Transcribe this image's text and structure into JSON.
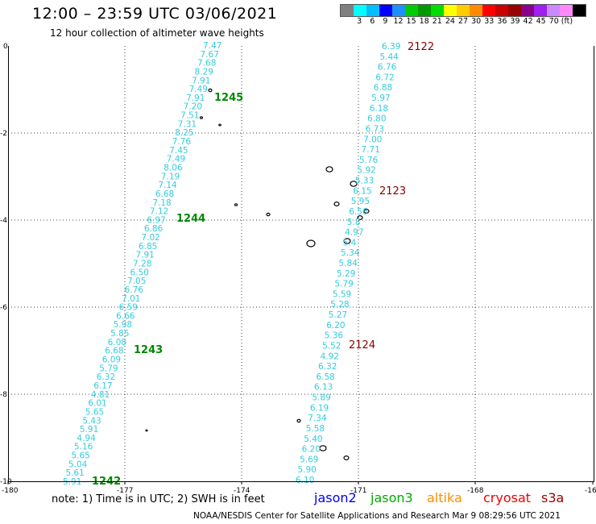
{
  "header": {
    "title": "12:00 – 23:59 UTC 03/06/2021",
    "subtitle": "12 hour collection of altimeter wave heights"
  },
  "color_scale": {
    "colors": [
      "#808080",
      "#00ffff",
      "#00bfff",
      "#0000ff",
      "#1e90ff",
      "#00cc00",
      "#009900",
      "#00dd00",
      "#ffff00",
      "#ffcc00",
      "#ff8c00",
      "#ff0000",
      "#cc0000",
      "#990000",
      "#8b008b",
      "#a020f0",
      "#cc88ff",
      "#ff88ff",
      "#000000"
    ],
    "labels": [
      "",
      "3",
      "6",
      "9",
      "12",
      "15",
      "18",
      "21",
      "24",
      "27",
      "30",
      "33",
      "36",
      "39",
      "42",
      "45",
      "70",
      "(ft)",
      ""
    ]
  },
  "axes": {
    "x_ticks": [
      "-180",
      "-177",
      "-174",
      "-171",
      "-168",
      "-16"
    ],
    "y_ticks": [
      "0",
      "-2",
      "-4",
      "-6",
      "-8",
      "-10"
    ]
  },
  "tracks": {
    "jason3_left": {
      "color": "#33ccdd",
      "values": [
        "7.47",
        "7.67",
        "7.68",
        "8.29",
        "7.91",
        "7.49",
        "7.91",
        "7.20",
        "7.51",
        "7.31",
        "8.25",
        "7.76",
        "7.45",
        "7.49",
        "8.06",
        "7.19",
        "7.14",
        "6.68",
        "7.18",
        "7.12",
        "6.97",
        "6.86",
        "7.02",
        "6.85",
        "7.91",
        "7.28",
        "6.50",
        "7.05",
        "6.76",
        "7.01",
        "6.59",
        "6.66",
        "5.98",
        "5.85",
        "6.08",
        "6.68",
        "6.09",
        "5.79",
        "6.32",
        "6.17",
        "4.81",
        "6.01",
        "5.65",
        "5.43",
        "5.91",
        "4.94",
        "5.16",
        "5.65",
        "5.04",
        "5.61",
        "5.91"
      ],
      "time_labels": [
        "1245",
        "1244",
        "1243",
        "1242"
      ]
    },
    "right_track": {
      "color": "#33ccdd",
      "values": [
        "6.39",
        "5.44",
        "6.76",
        "6.72",
        "6.88",
        "5.97",
        "6.18",
        "6.80",
        "6.73",
        "7.00",
        "7.71",
        "5.76",
        "5.92",
        "5.33",
        "6.15",
        "5.95",
        "6.56",
        "5.8",
        "4.97",
        "5.4",
        "5.34",
        "5.84",
        "5.29",
        "5.79",
        "5.59",
        "5.28",
        "5.27",
        "6.20",
        "5.36",
        "5.52",
        "4.92",
        "6.32",
        "6.58",
        "6.13",
        "5.89",
        "6.19",
        "7.34",
        "5.58",
        "5.40",
        "6.20",
        "5.69",
        "5.90",
        "6.10"
      ],
      "time_labels": [
        "2122",
        "2123",
        "2124"
      ]
    }
  },
  "legend": [
    {
      "name": "jason2",
      "color": "#0000ee"
    },
    {
      "name": "jason3",
      "color": "#00aa00"
    },
    {
      "name": "altika",
      "color": "#ff8c00"
    },
    {
      "name": "cryosat",
      "color": "#ee0000"
    },
    {
      "name": "s3a",
      "color": "#990000"
    }
  ],
  "footer": {
    "note": "note:  1) Time is in UTC;  2) SWH is in feet",
    "credit": "NOAA/NESDIS Center for Satellite Applications and Research    Mar  9 08:29:56 UTC 2021"
  }
}
